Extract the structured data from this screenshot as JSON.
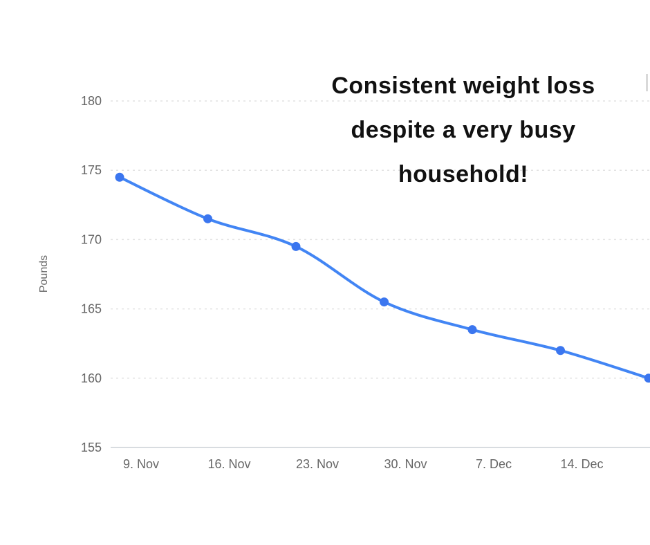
{
  "annotation": {
    "lines": [
      "Consistent weight loss",
      "despite a very busy",
      "household!"
    ]
  },
  "chart_data": {
    "type": "line",
    "title": "",
    "ylabel": "Pounds",
    "xlabel": "",
    "x_tick_labels": [
      "9. Nov",
      "16. Nov",
      "23. Nov",
      "30. Nov",
      "7. Dec",
      "14. Dec"
    ],
    "y_tick_labels": [
      "155",
      "160",
      "165",
      "170",
      "175",
      "180"
    ],
    "y_ticks": [
      155,
      160,
      165,
      170,
      175,
      180
    ],
    "ylim": [
      155,
      180
    ],
    "grid": "horizontal-dashed",
    "legend": "none",
    "values": [
      174.5,
      171.5,
      169.5,
      165.5,
      163.5,
      162,
      160
    ],
    "colors": {
      "line": "#4285f4",
      "marker": "#3b76ef",
      "grid": "#e2e2e2",
      "axis_line": "#ccd0d6",
      "axis_text": "#666666"
    }
  }
}
